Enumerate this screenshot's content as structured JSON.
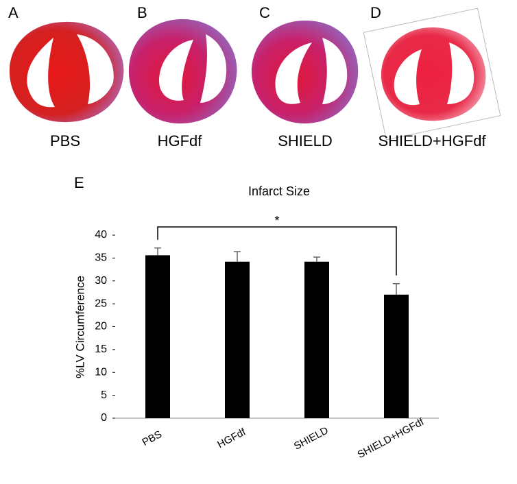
{
  "panels": [
    {
      "letter": "A",
      "label": "PBS"
    },
    {
      "letter": "B",
      "label": "HGFdf"
    },
    {
      "letter": "C",
      "label": "SHIELD"
    },
    {
      "letter": "D",
      "label": "SHIELD+HGFdf"
    }
  ],
  "chart_data": {
    "type": "bar",
    "panel_letter": "E",
    "title": "Infarct Size",
    "y_label": "%LV Circumference",
    "categories": [
      "PBS",
      "HGFdf",
      "SHIELD",
      "SHIELD+HGFdf"
    ],
    "values": [
      35.6,
      34.2,
      34.2,
      27.0
    ],
    "errors": [
      1.6,
      2.2,
      1.0,
      2.4
    ],
    "color": "#000000",
    "ylim": [
      0,
      40
    ],
    "yticks": [
      0,
      5,
      10,
      15,
      20,
      25,
      30,
      35,
      40
    ],
    "grid": false,
    "annotation": "*"
  }
}
